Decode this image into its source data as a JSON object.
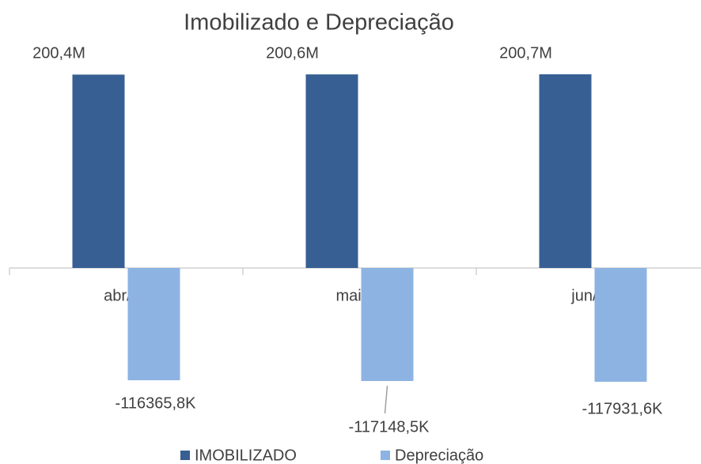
{
  "chart_data": {
    "type": "bar",
    "title": "Imobilizado e Depreciação",
    "categories": [
      "abr/23",
      "mai/23",
      "jun/23"
    ],
    "series": [
      {
        "name": "IMOBILIZADO",
        "color": "#375f93",
        "values": [
          200400000,
          200600000,
          200700000
        ],
        "value_labels": [
          "200,4M",
          "200,6M",
          "200,7M"
        ]
      },
      {
        "name": "Depreciação",
        "color": "#8db3e2",
        "values": [
          -116365800,
          -117148500,
          -117931600
        ],
        "value_labels": [
          "-116365,8K",
          "-117148,5K",
          "-117931,6K"
        ]
      }
    ],
    "legend": "bottom"
  }
}
